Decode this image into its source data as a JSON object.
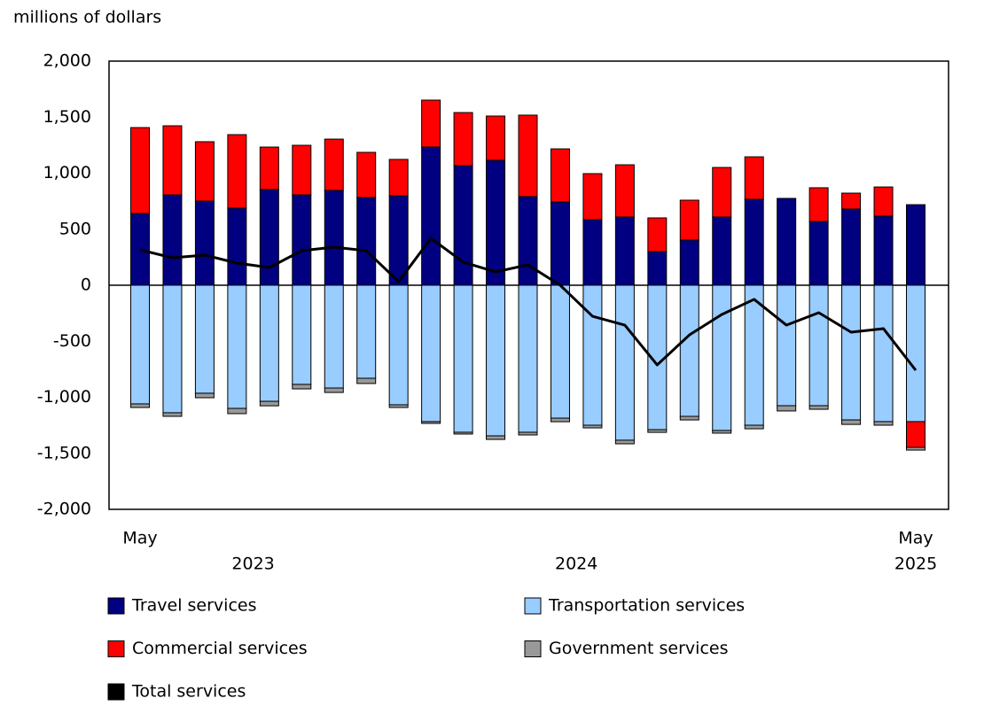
{
  "chart_data": {
    "type": "bar",
    "stacked": true,
    "y_axis_label": "millions of dollars",
    "categories": [
      "May",
      null,
      null,
      null,
      null,
      null,
      null,
      null,
      null,
      null,
      null,
      null,
      null,
      null,
      null,
      null,
      null,
      null,
      null,
      null,
      null,
      null,
      null,
      null,
      "May"
    ],
    "x_groups": [
      {
        "label": "2023",
        "from": 0,
        "to": 7
      },
      {
        "label": "2024",
        "from": 8,
        "to": 19
      },
      {
        "label": "2025",
        "from": 24,
        "to": 24
      }
    ],
    "ylim": [
      -2000,
      2000
    ],
    "yticks": [
      {
        "value": 2000,
        "label": "2,000"
      },
      {
        "value": 1500,
        "label": "1,500"
      },
      {
        "value": 1000,
        "label": "1,000"
      },
      500,
      0,
      -500,
      {
        "value": -1000,
        "label": "-1,000"
      },
      {
        "value": -1500,
        "label": "-1,500"
      },
      {
        "value": -2000,
        "label": "-2,000"
      }
    ],
    "series": [
      {
        "name": "Travel services",
        "color": "#000080",
        "values": [
          640,
          806,
          751,
          688,
          854,
          806,
          846,
          783,
          798,
          1233,
          1067,
          1115,
          791,
          743,
          585,
          609,
          300,
          403,
          609,
          767,
          775,
          569,
          680,
          617,
          719
        ]
      },
      {
        "name": "Transportation services",
        "color": "#99ccff",
        "values": [
          -1059,
          -1138,
          -964,
          -1099,
          -1036,
          -885,
          -917,
          -830,
          -1067,
          -1217,
          -1312,
          -1344,
          -1312,
          -1186,
          -1249,
          -1383,
          -1289,
          -1170,
          -1296,
          -1249,
          -1075,
          -1075,
          -1202,
          -1217,
          -1217
        ]
      },
      {
        "name": "Commercial services",
        "color": "#ff0000",
        "values": [
          767,
          617,
          530,
          656,
          379,
          443,
          458,
          403,
          325,
          419,
          474,
          395,
          727,
          474,
          411,
          466,
          301,
          356,
          442,
          379,
          0,
          301,
          142,
          260,
          -230
        ]
      },
      {
        "name": "Government services",
        "color": "#999999",
        "values": [
          -32,
          -32,
          -40,
          -47,
          -40,
          -40,
          -40,
          -47,
          -24,
          -16,
          -16,
          -32,
          -24,
          -32,
          -24,
          -32,
          -24,
          -32,
          -24,
          -32,
          -47,
          -32,
          -40,
          -32,
          -24
        ]
      },
      {
        "name": "Total services",
        "type": "line",
        "color": "#000000",
        "values": [
          316,
          245,
          269,
          198,
          158,
          308,
          340,
          308,
          32,
          419,
          206,
          119,
          182,
          0,
          -277,
          -356,
          -711,
          -443,
          -261,
          -126,
          -356,
          -245,
          -419,
          -387,
          -759
        ]
      }
    ]
  }
}
